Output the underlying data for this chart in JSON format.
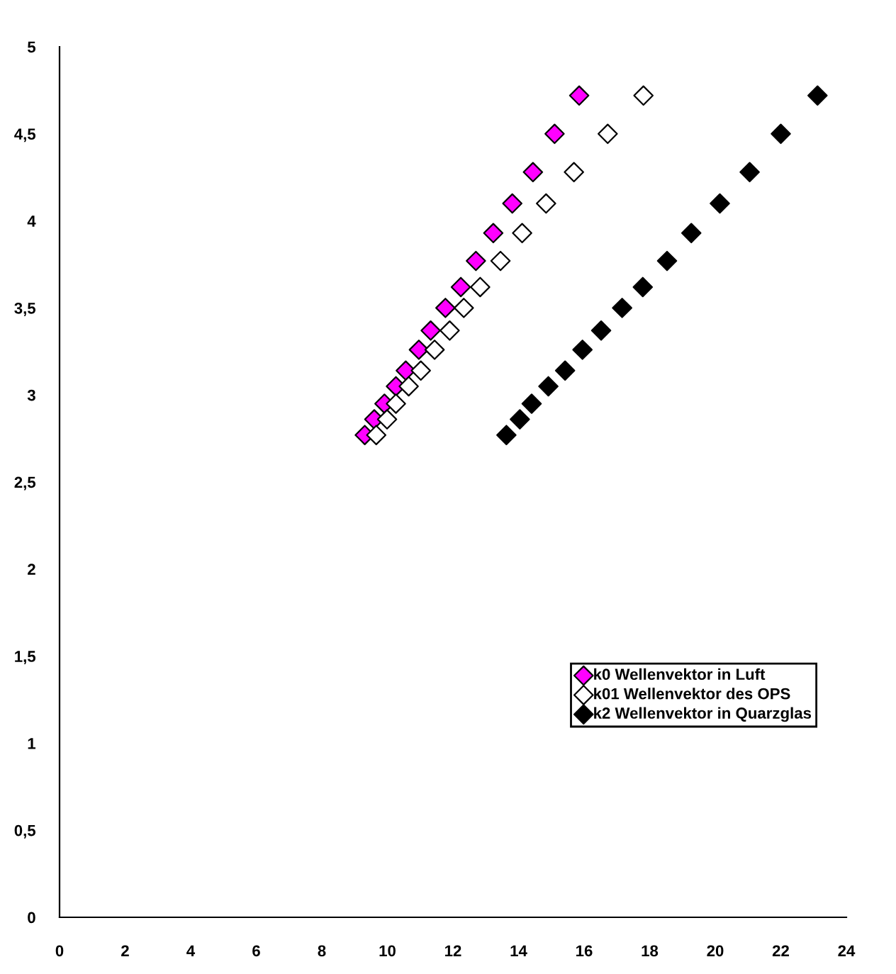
{
  "chart_data": {
    "type": "scatter",
    "marker": "diamond",
    "legend": "right",
    "grid": false,
    "xlim": [
      0,
      24
    ],
    "xticks": [
      0,
      2,
      4,
      6,
      8,
      10,
      12,
      14,
      16,
      18,
      20,
      22,
      24
    ],
    "ylim": [
      0,
      5
    ],
    "yticks": [
      0,
      {
        "value": 0.5,
        "label": "0,5"
      },
      1,
      {
        "value": 1.5,
        "label": "1,5"
      },
      2,
      {
        "value": 2.5,
        "label": "2,5"
      },
      3,
      {
        "value": 3.5,
        "label": "3,5"
      },
      4,
      {
        "value": 4.5,
        "label": "4,5"
      },
      5
    ],
    "series": [
      {
        "name": "k0 Wellenvektor in Luft",
        "color": "#ff00ff",
        "x": [
          15.85,
          15.1,
          14.44,
          13.81,
          13.23,
          12.7,
          12.24,
          11.77,
          11.32,
          10.96,
          10.56,
          10.26,
          9.91,
          9.6,
          9.31
        ],
        "values": [
          4.72,
          4.5,
          4.28,
          4.1,
          3.93,
          3.77,
          3.62,
          3.5,
          3.37,
          3.26,
          3.14,
          3.05,
          2.95,
          2.86,
          2.77
        ]
      },
      {
        "name": "k01 Wellenvektor des OPS",
        "color": "#ffffff",
        "x": [
          17.81,
          16.72,
          15.69,
          14.84,
          14.11,
          13.45,
          12.83,
          12.33,
          11.9,
          11.44,
          11.02,
          10.65,
          10.26,
          9.99,
          9.66
        ],
        "values": [
          4.72,
          4.5,
          4.28,
          4.1,
          3.93,
          3.77,
          3.62,
          3.5,
          3.37,
          3.26,
          3.14,
          3.05,
          2.95,
          2.86,
          2.77
        ]
      },
      {
        "name": "k2 Wellenvektor in Quarzglas",
        "color": "#000000",
        "x": [
          23.12,
          22.0,
          21.05,
          20.14,
          19.27,
          18.53,
          17.79,
          17.16,
          16.52,
          15.95,
          15.42,
          14.91,
          14.4,
          14.04,
          13.63
        ],
        "values": [
          4.72,
          4.5,
          4.28,
          4.1,
          3.93,
          3.77,
          3.62,
          3.5,
          3.37,
          3.26,
          3.14,
          3.05,
          2.95,
          2.86,
          2.77
        ]
      }
    ]
  }
}
